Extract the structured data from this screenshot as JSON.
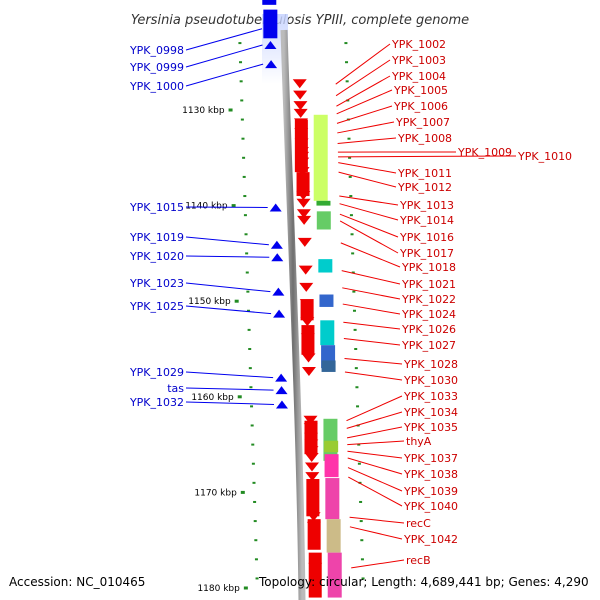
{
  "title": "Yersinia pseudotuberculosis YPIII, complete genome",
  "footer": {
    "accession": "Accession: NC_010465",
    "summary": "Topology: circular; Length: 4,689,441 bp; Genes: 4,290"
  },
  "ruler": {
    "ticks": [
      {
        "pos_kbp": 1130,
        "label": "1130 kbp"
      },
      {
        "pos_kbp": 1140,
        "label": "1140 kbp"
      },
      {
        "pos_kbp": 1150,
        "label": "1150 kbp"
      },
      {
        "pos_kbp": 1160,
        "label": "1160 kbp"
      },
      {
        "pos_kbp": 1170,
        "label": "1170 kbp"
      },
      {
        "pos_kbp": 1180,
        "label": "1180 kbp"
      }
    ]
  },
  "colors": {
    "minus_strand": "#0000ee",
    "plus_strand": "#ee0000",
    "label_minus": "#0000cc",
    "label_plus": "#cc0000",
    "tick": "#228b22",
    "backbone": "#888888"
  },
  "genes_minus": [
    {
      "label": "YPK_0998",
      "kbp": 1121.5
    },
    {
      "label": "YPK_0999",
      "kbp": 1123.2
    },
    {
      "label": "YPK_1000",
      "kbp": 1125.2
    },
    {
      "label": "YPK_1015",
      "kbp": 1140.2
    },
    {
      "label": "YPK_1019",
      "kbp": 1144.1
    },
    {
      "label": "YPK_1020",
      "kbp": 1145.4
    },
    {
      "label": "YPK_1023",
      "kbp": 1149.0
    },
    {
      "label": "YPK_1025",
      "kbp": 1151.3
    },
    {
      "label": "YPK_1029",
      "kbp": 1158.0
    },
    {
      "label": "tas",
      "kbp": 1159.3
    },
    {
      "label": "YPK_1032",
      "kbp": 1160.8
    }
  ],
  "genes_plus": [
    {
      "label": "YPK_1002",
      "kbp": 1127.3
    },
    {
      "label": "YPK_1003",
      "kbp": 1128.5
    },
    {
      "label": "YPK_1004",
      "kbp": 1129.6
    },
    {
      "label": "YPK_1005",
      "kbp": 1130.4
    },
    {
      "label": "YPK_1006",
      "kbp": 1131.4
    },
    {
      "label": "YPK_1007",
      "kbp": 1132.4
    },
    {
      "label": "YPK_1008",
      "kbp": 1133.5
    },
    {
      "label": "YPK_1009",
      "kbp": 1134.4
    },
    {
      "label": "YPK_1010",
      "kbp": 1134.9
    },
    {
      "label": "YPK_1011",
      "kbp": 1135.5
    },
    {
      "label": "YPK_1012",
      "kbp": 1136.5
    },
    {
      "label": "YPK_1013",
      "kbp": 1139.0
    },
    {
      "label": "YPK_1014",
      "kbp": 1139.8
    },
    {
      "label": "YPK_1016",
      "kbp": 1140.9
    },
    {
      "label": "YPK_1017",
      "kbp": 1141.6
    },
    {
      "label": "YPK_1018",
      "kbp": 1143.9
    },
    {
      "label": "YPK_1021",
      "kbp": 1146.8
    },
    {
      "label": "YPK_1022",
      "kbp": 1148.6
    },
    {
      "label": "YPK_1024",
      "kbp": 1150.3
    },
    {
      "label": "YPK_1026",
      "kbp": 1152.2
    },
    {
      "label": "YPK_1027",
      "kbp": 1153.9
    },
    {
      "label": "YPK_1028",
      "kbp": 1156.0
    },
    {
      "label": "YPK_1030",
      "kbp": 1157.4
    },
    {
      "label": "YPK_1033",
      "kbp": 1162.5
    },
    {
      "label": "YPK_1034",
      "kbp": 1163.3
    },
    {
      "label": "YPK_1035",
      "kbp": 1164.3
    },
    {
      "label": "thyA",
      "kbp": 1165.0
    },
    {
      "label": "YPK_1037",
      "kbp": 1165.7
    },
    {
      "label": "YPK_1038",
      "kbp": 1166.4
    },
    {
      "label": "YPK_1039",
      "kbp": 1167.4
    },
    {
      "label": "YPK_1040",
      "kbp": 1168.4
    },
    {
      "label": "recC",
      "kbp": 1172.6
    },
    {
      "label": "YPK_1042",
      "kbp": 1173.6
    },
    {
      "label": "recB",
      "kbp": 1177.9
    }
  ]
}
